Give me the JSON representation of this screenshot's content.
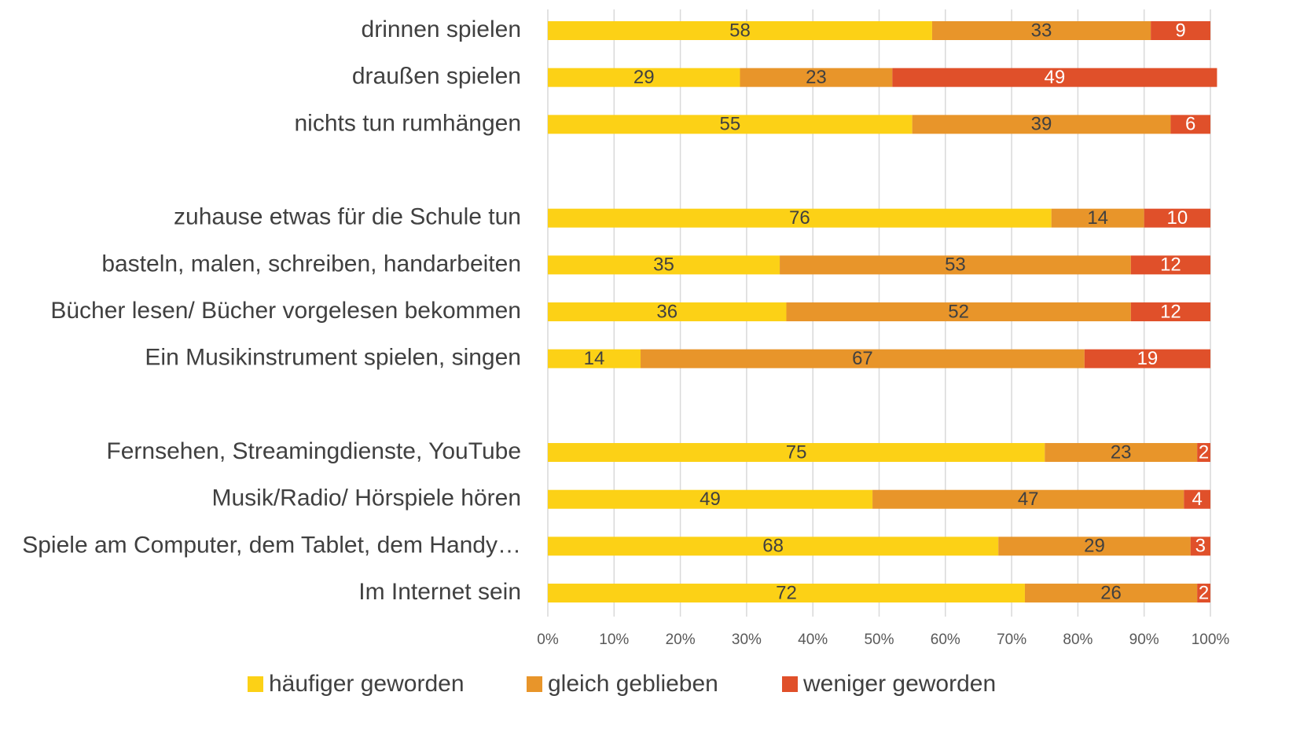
{
  "chart_data": {
    "type": "stacked_bar_horizontal",
    "categories": [
      "drinnen spielen",
      "draußen spielen",
      "nichts tun rumhängen",
      null,
      "zuhause etwas für die Schule tun",
      "basteln, malen, schreiben, handarbeiten",
      "Bücher lesen/ Bücher vorgelesen bekommen",
      "Ein Musikinstrument spielen, singen",
      null,
      "Fernsehen, Streamingdienste, YouTube",
      "Musik/Radio/ Hörspiele hören",
      "Spiele am Computer, dem Tablet, dem Handy…",
      "Im Internet sein"
    ],
    "series": [
      {
        "name": "häufiger geworden",
        "color": "#fcd116",
        "values": [
          58,
          29,
          55,
          null,
          76,
          35,
          36,
          14,
          null,
          75,
          49,
          68,
          72
        ]
      },
      {
        "name": "gleich geblieben",
        "color": "#e8952a",
        "values": [
          33,
          23,
          39,
          null,
          14,
          53,
          52,
          67,
          null,
          23,
          47,
          29,
          26
        ]
      },
      {
        "name": "weniger geworden",
        "color": "#e0502a",
        "values": [
          9,
          49,
          6,
          null,
          10,
          12,
          12,
          19,
          null,
          2,
          4,
          3,
          2
        ]
      }
    ],
    "xlim": [
      0,
      100
    ],
    "xticks": [
      {
        "value": 0,
        "label": "0%"
      },
      {
        "value": 10,
        "label": "10%"
      },
      {
        "value": 20,
        "label": "20%"
      },
      {
        "value": 30,
        "label": "30%"
      },
      {
        "value": 40,
        "label": "40%"
      },
      {
        "value": 50,
        "label": "50%"
      },
      {
        "value": 60,
        "label": "60%"
      },
      {
        "value": 70,
        "label": "70%"
      },
      {
        "value": 80,
        "label": "80%"
      },
      {
        "value": 90,
        "label": "90%"
      },
      {
        "value": 100,
        "label": "100%"
      }
    ],
    "grid": true,
    "legend": "bottom"
  }
}
